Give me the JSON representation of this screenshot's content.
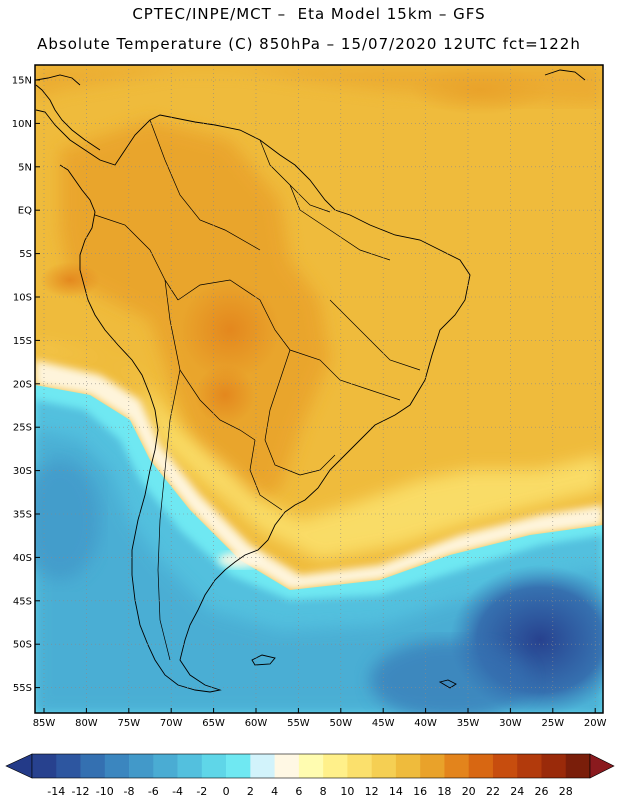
{
  "header": {
    "line1": "CPTEC/INPE/MCT –  Eta Model 15km – GFS",
    "line2": "Absolute Temperature (C) 850hPa – 15/07/2020 12UTC fct=122h"
  },
  "map": {
    "lat_labels": [
      "15N",
      "10N",
      "5N",
      "EQ",
      "5S",
      "10S",
      "15S",
      "20S",
      "25S",
      "30S",
      "35S",
      "40S",
      "45S",
      "50S",
      "55S"
    ],
    "lon_labels": [
      "85W",
      "80W",
      "75W",
      "70W",
      "65W",
      "60W",
      "55W",
      "50W",
      "45W",
      "40W",
      "35W",
      "30W",
      "25W",
      "20W"
    ]
  },
  "colorbar": {
    "labels": [
      "-14",
      "-12",
      "-10",
      "-8",
      "-6",
      "-4",
      "-2",
      "0",
      "2",
      "4",
      "6",
      "8",
      "10",
      "12",
      "14",
      "16",
      "18",
      "20",
      "22",
      "24",
      "26",
      "28"
    ],
    "colors": [
      "#27418e",
      "#2d56a0",
      "#3470b1",
      "#3b86bf",
      "#4299c9",
      "#4aacd3",
      "#53c0de",
      "#5fd6e8",
      "#6fe8f2",
      "#d2f3fb",
      "#fff8e4",
      "#fffcb0",
      "#fff08a",
      "#fbe06c",
      "#f5cf53",
      "#efbb3c",
      "#e9a22a",
      "#e3841c",
      "#d86712",
      "#c74d0e",
      "#b23a0c",
      "#9a2a0a",
      "#7a1e0a"
    ],
    "under_color": "#233a88",
    "over_color": "#8a1a1e"
  }
}
